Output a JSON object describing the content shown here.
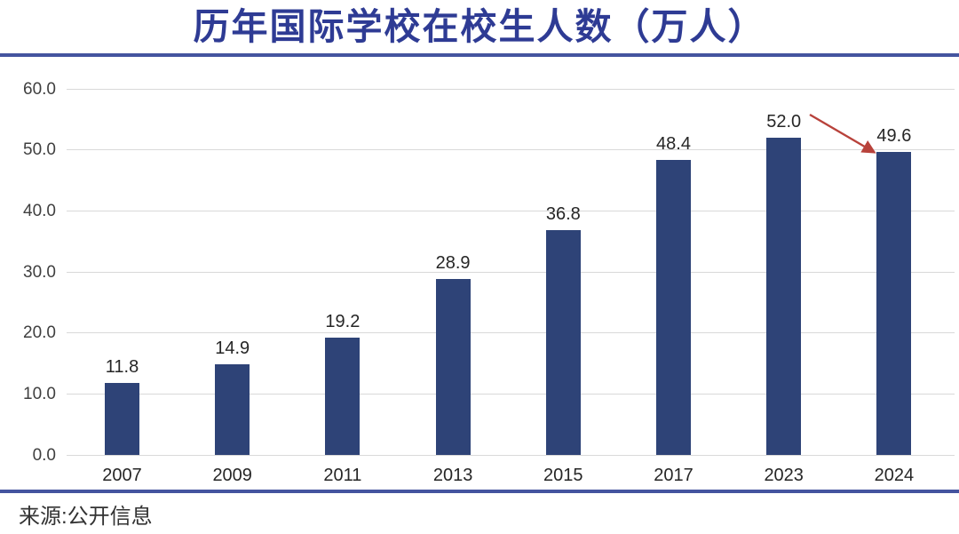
{
  "title": "历年国际学校在校生人数（万人）",
  "source": "来源:公开信息",
  "colors": {
    "title_text": "#2e3b94",
    "divider": "#44549f",
    "bar_fill": "#2e4377",
    "gridline": "#d9d9d9",
    "axis_text": "#3f3f3f",
    "value_text": "#262626",
    "arrow": "#b8423b",
    "source_text": "#333333"
  },
  "chart_data": {
    "type": "bar",
    "title": "历年国际学校在校生人数（万人）",
    "categories": [
      "2007",
      "2009",
      "2011",
      "2013",
      "2015",
      "2017",
      "2023",
      "2024"
    ],
    "values": [
      11.8,
      14.9,
      19.2,
      28.9,
      36.8,
      48.4,
      52.0,
      49.6
    ],
    "data_labels": [
      "11.8",
      "14.9",
      "19.2",
      "28.9",
      "36.8",
      "48.4",
      "52.0",
      "49.6"
    ],
    "xlabel": "",
    "ylabel": "",
    "ylim": [
      0,
      60
    ],
    "yticks": [
      0,
      10,
      20,
      30,
      40,
      50,
      60
    ],
    "ytick_labels": [
      "0.0",
      "10.0",
      "20.0",
      "30.0",
      "40.0",
      "50.0",
      "60.0"
    ],
    "grid": true,
    "legend": "none",
    "bar_color": "#2e4377",
    "annotation": {
      "type": "arrow",
      "from": "52.0 label (2023 bar)",
      "to": "top of 2024 bar (49.6)",
      "color": "#b8423b",
      "meaning": "decline from 52.0 to 49.6"
    },
    "source": "来源:公开信息"
  }
}
